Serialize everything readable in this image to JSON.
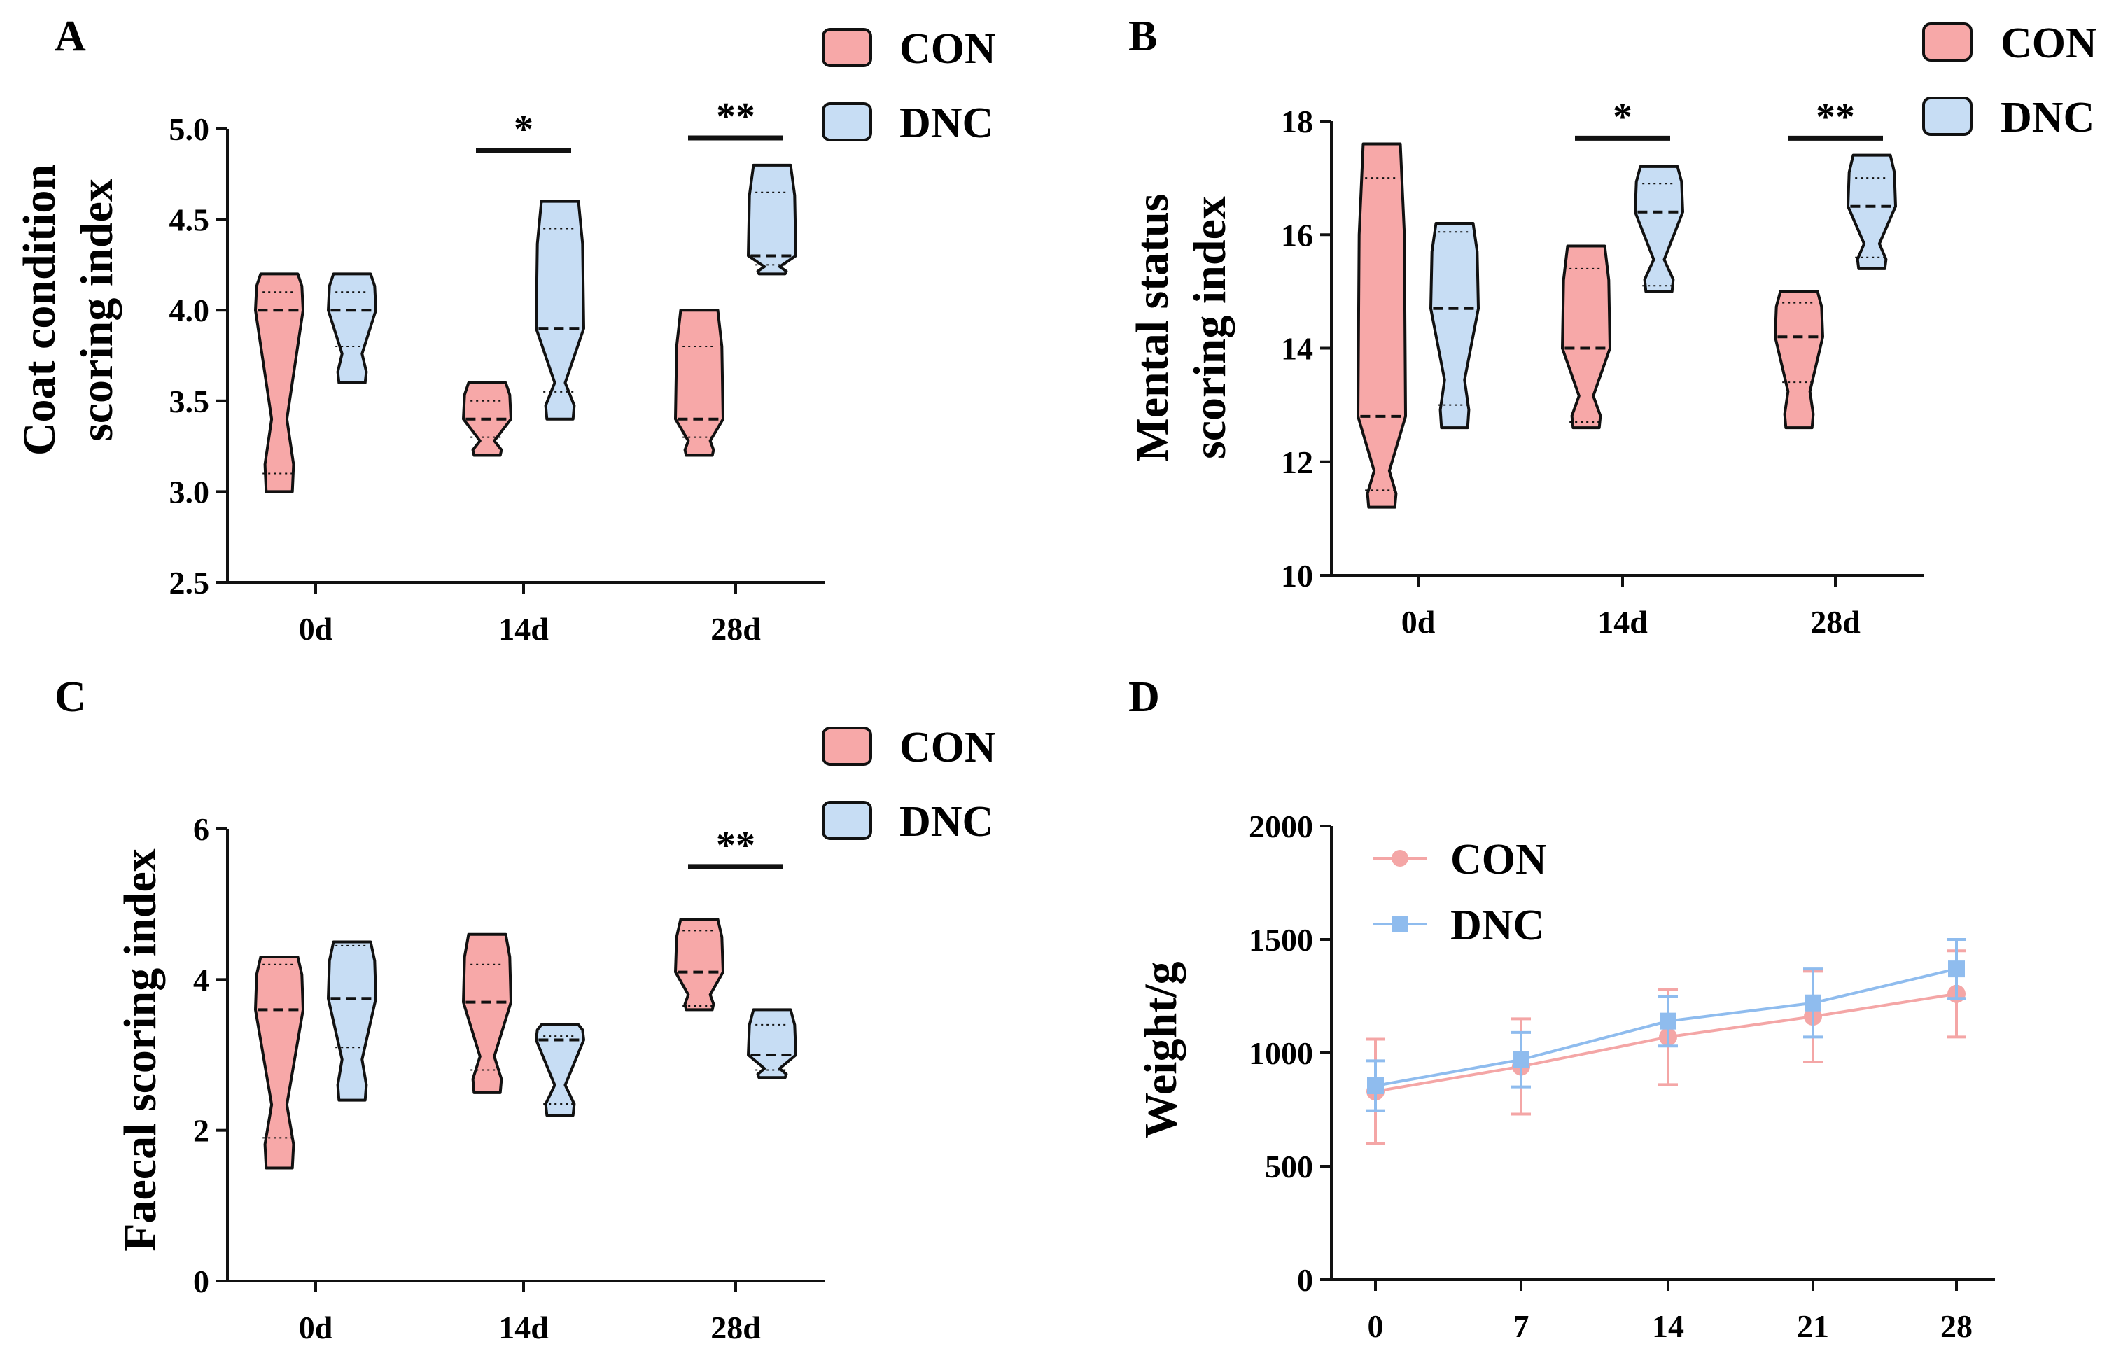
{
  "figure": {
    "background": "#ffffff"
  },
  "colors": {
    "con_fill": "#f7a8a8",
    "dnc_fill": "#c7ddf4",
    "con_line": "#f4a6a6",
    "dnc_line": "#8fbcee",
    "stroke": "#111111"
  },
  "chart_data": [
    {
      "panel": "A",
      "type": "violin",
      "title": "",
      "ylabel_line1": "Coat condition",
      "ylabel_line2": "scoring index",
      "xlabel": "",
      "categories": [
        "0d",
        "14d",
        "28d"
      ],
      "ylim": [
        2.5,
        5.0
      ],
      "yticks": [
        2.5,
        3.0,
        3.5,
        4.0,
        4.5,
        5.0
      ],
      "ytick_labels": [
        "2.5",
        "3.0",
        "3.5",
        "4.0",
        "4.5",
        "5.0"
      ],
      "legend": [
        "CON",
        "DNC"
      ],
      "series": [
        {
          "name": "CON",
          "violins": [
            {
              "min": 3.0,
              "max": 4.2,
              "median": 4.0,
              "q1": 3.1,
              "q3": 4.1
            },
            {
              "min": 3.2,
              "max": 3.6,
              "median": 3.4,
              "q1": 3.3,
              "q3": 3.5
            },
            {
              "min": 3.2,
              "max": 4.0,
              "median": 3.4,
              "q1": 3.3,
              "q3": 3.8
            }
          ]
        },
        {
          "name": "DNC",
          "violins": [
            {
              "min": 3.6,
              "max": 4.2,
              "median": 4.0,
              "q1": 3.8,
              "q3": 4.1
            },
            {
              "min": 3.4,
              "max": 4.6,
              "median": 3.9,
              "q1": 3.55,
              "q3": 4.45
            },
            {
              "min": 4.2,
              "max": 4.8,
              "median": 4.3,
              "q1": 4.25,
              "q3": 4.65
            }
          ]
        }
      ],
      "significance": [
        {
          "group": 1,
          "label": "*",
          "y": 4.88
        },
        {
          "group": 2,
          "label": "**",
          "y": 4.95
        }
      ]
    },
    {
      "panel": "B",
      "type": "violin",
      "title": "",
      "ylabel_line1": "Mental status",
      "ylabel_line2": "scoring index",
      "xlabel": "",
      "categories": [
        "0d",
        "14d",
        "28d"
      ],
      "ylim": [
        10,
        18
      ],
      "yticks": [
        10,
        12,
        14,
        16,
        18
      ],
      "ytick_labels": [
        "10",
        "12",
        "14",
        "16",
        "18"
      ],
      "legend": [
        "CON",
        "DNC"
      ],
      "series": [
        {
          "name": "CON",
          "violins": [
            {
              "min": 11.2,
              "max": 17.6,
              "median": 12.8,
              "q1": 11.5,
              "q3": 17.0
            },
            {
              "min": 12.6,
              "max": 15.8,
              "median": 14.0,
              "q1": 12.7,
              "q3": 15.4
            },
            {
              "min": 12.6,
              "max": 15.0,
              "median": 14.2,
              "q1": 13.4,
              "q3": 14.8
            }
          ]
        },
        {
          "name": "DNC",
          "violins": [
            {
              "min": 12.6,
              "max": 16.2,
              "median": 14.7,
              "q1": 13.0,
              "q3": 16.05
            },
            {
              "min": 15.0,
              "max": 17.2,
              "median": 16.4,
              "q1": 15.1,
              "q3": 16.9
            },
            {
              "min": 15.4,
              "max": 17.4,
              "median": 16.5,
              "q1": 15.6,
              "q3": 17.0
            }
          ]
        }
      ],
      "significance": [
        {
          "group": 1,
          "label": "*",
          "y": 17.7
        },
        {
          "group": 2,
          "label": "**",
          "y": 17.7
        }
      ]
    },
    {
      "panel": "C",
      "type": "violin",
      "title": "",
      "ylabel_line1": "Faecal scoring index",
      "ylabel_line2": "",
      "xlabel": "",
      "categories": [
        "0d",
        "14d",
        "28d"
      ],
      "ylim": [
        0,
        6
      ],
      "yticks": [
        0,
        2,
        4,
        6
      ],
      "ytick_labels": [
        "0",
        "2",
        "4",
        "6"
      ],
      "legend": [
        "CON",
        "DNC"
      ],
      "series": [
        {
          "name": "CON",
          "violins": [
            {
              "min": 1.5,
              "max": 4.3,
              "median": 3.6,
              "q1": 1.9,
              "q3": 4.2
            },
            {
              "min": 2.5,
              "max": 4.6,
              "median": 3.7,
              "q1": 2.8,
              "q3": 4.2
            },
            {
              "min": 3.6,
              "max": 4.8,
              "median": 4.1,
              "q1": 3.65,
              "q3": 4.65
            }
          ]
        },
        {
          "name": "DNC",
          "violins": [
            {
              "min": 2.4,
              "max": 4.5,
              "median": 3.75,
              "q1": 3.1,
              "q3": 4.45
            },
            {
              "min": 2.2,
              "max": 3.4,
              "median": 3.2,
              "q1": 2.35,
              "q3": 3.25
            },
            {
              "min": 2.7,
              "max": 3.6,
              "median": 3.0,
              "q1": 2.8,
              "q3": 3.4
            }
          ]
        }
      ],
      "significance": [
        {
          "group": 2,
          "label": "**",
          "y": 5.5
        }
      ]
    },
    {
      "panel": "D",
      "type": "line",
      "title": "",
      "ylabel": "Weight/g",
      "xlabel": "",
      "x": [
        0,
        7,
        14,
        21,
        28
      ],
      "xtick_labels": [
        "0",
        "7",
        "14",
        "21",
        "28"
      ],
      "ylim": [
        0,
        2000
      ],
      "yticks": [
        0,
        500,
        1000,
        1500,
        2000
      ],
      "ytick_labels": [
        "0",
        "500",
        "1000",
        "1500",
        "2000"
      ],
      "legend": [
        "CON",
        "DNC"
      ],
      "series": [
        {
          "name": "CON",
          "marker": "circle",
          "values": [
            830,
            940,
            1070,
            1160,
            1260
          ],
          "errors": [
            230,
            210,
            210,
            200,
            190
          ]
        },
        {
          "name": "DNC",
          "marker": "square",
          "values": [
            855,
            970,
            1140,
            1220,
            1370
          ],
          "errors": [
            110,
            120,
            110,
            150,
            130
          ]
        }
      ]
    }
  ]
}
